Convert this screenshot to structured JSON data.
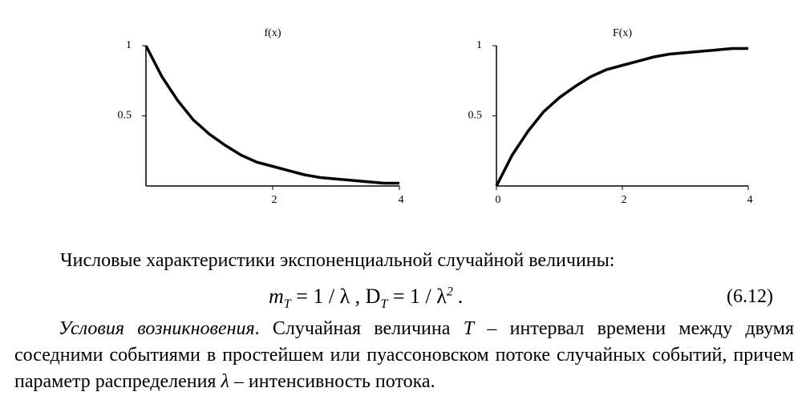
{
  "chart_data": [
    {
      "type": "line",
      "title": "f(x)",
      "xlim": [
        0,
        4
      ],
      "ylim": [
        0,
        1
      ],
      "xticks": [
        2,
        4
      ],
      "yticks": [
        0.5,
        1
      ],
      "color": "#000000",
      "x": [
        0,
        0.25,
        0.5,
        0.75,
        1,
        1.25,
        1.5,
        1.75,
        2,
        2.25,
        2.5,
        2.75,
        3,
        3.25,
        3.5,
        3.75,
        4
      ],
      "values": [
        1,
        0.78,
        0.61,
        0.47,
        0.37,
        0.29,
        0.22,
        0.17,
        0.14,
        0.11,
        0.08,
        0.06,
        0.05,
        0.04,
        0.03,
        0.02,
        0.02
      ]
    },
    {
      "type": "line",
      "title": "F(x)",
      "xlim": [
        0,
        4
      ],
      "ylim": [
        0,
        1
      ],
      "xticks": [
        0,
        2,
        4
      ],
      "yticks": [
        0.5,
        1
      ],
      "color": "#000000",
      "x": [
        0,
        0.25,
        0.5,
        0.75,
        1,
        1.25,
        1.5,
        1.75,
        2,
        2.25,
        2.5,
        2.75,
        3,
        3.25,
        3.5,
        3.75,
        4
      ],
      "values": [
        0,
        0.22,
        0.39,
        0.53,
        0.63,
        0.71,
        0.78,
        0.83,
        0.86,
        0.89,
        0.92,
        0.94,
        0.95,
        0.96,
        0.97,
        0.98,
        0.98
      ]
    }
  ],
  "text": {
    "intro": "Числовые характеристики экспоненциальной случайной величины:",
    "formula": {
      "m": "m",
      "sub_m": "T",
      "eq1": "= 1 / λ , D",
      "sub_d": "T",
      "eq2": "= 1 / λ",
      "sup": "2",
      "end": ".",
      "number": "(6.12)"
    },
    "paragraph": {
      "italic_lead": "Условия возникновения",
      "part1": ". Случайная величина ",
      "var": "T",
      "part2": " – интервал времени между двумя соседними событиями в простейшем или пуассоновском потоке случайных событий, причем параметр распределения ",
      "lambda": "λ",
      "part3": " – интенсивность потока."
    }
  }
}
